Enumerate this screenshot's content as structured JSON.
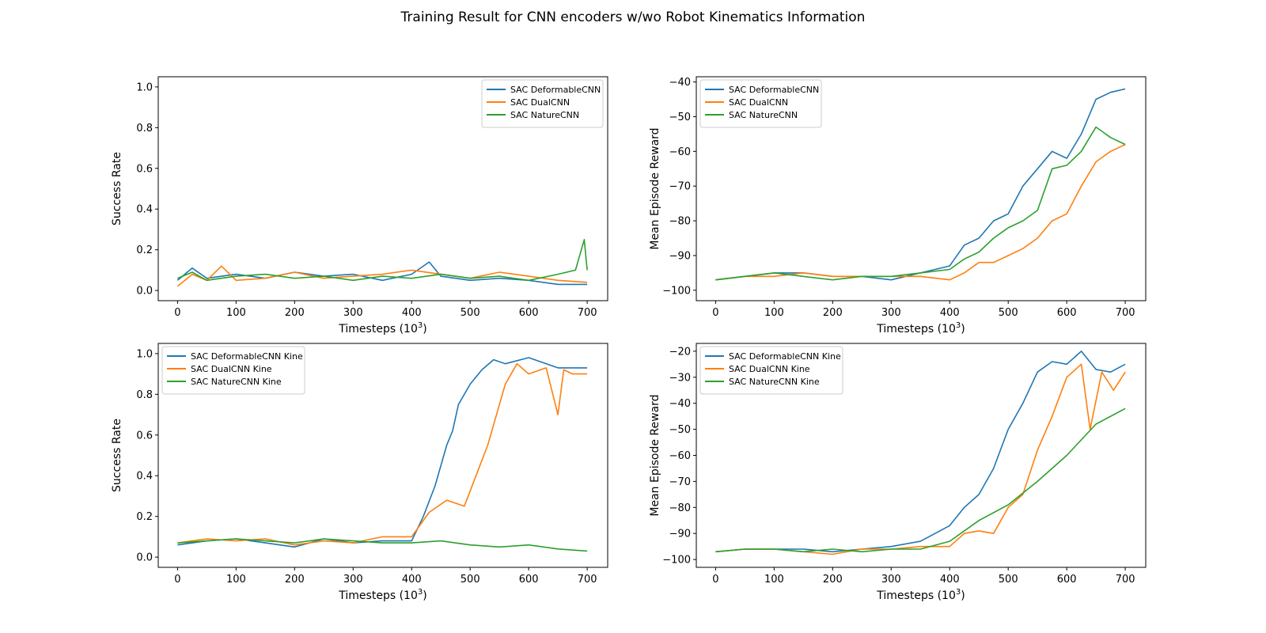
{
  "figure": {
    "title": "Training Result for CNN encoders w/wo Robot Kinematics Information"
  },
  "colors": {
    "blue": "#1f77b4",
    "orange": "#ff7f0e",
    "green": "#2ca02c"
  },
  "chart_data": [
    {
      "type": "line",
      "xlabel": "Timesteps",
      "xlabel_unit_base": "10",
      "xlabel_unit_exp": "3",
      "ylabel": "Success Rate",
      "xlim": [
        -33,
        735
      ],
      "ylim": [
        -0.05,
        1.05
      ],
      "xticks": [
        0,
        100,
        200,
        300,
        400,
        500,
        600,
        700
      ],
      "yticks": [
        0.0,
        0.2,
        0.4,
        0.6,
        0.8,
        1.0
      ],
      "ytick_labels": [
        "0.0",
        "0.2",
        "0.4",
        "0.6",
        "0.8",
        "1.0"
      ],
      "legend": "top-right",
      "series": [
        {
          "name": "SAC DeformableCNN",
          "color": "#1f77b4",
          "x": [
            0,
            25,
            50,
            100,
            150,
            200,
            250,
            300,
            350,
            400,
            430,
            450,
            500,
            550,
            600,
            650,
            675,
            700
          ],
          "y": [
            0.05,
            0.11,
            0.06,
            0.08,
            0.06,
            0.09,
            0.07,
            0.08,
            0.05,
            0.08,
            0.14,
            0.07,
            0.05,
            0.06,
            0.05,
            0.03,
            0.03,
            0.03
          ]
        },
        {
          "name": "SAC DualCNN",
          "color": "#ff7f0e",
          "x": [
            0,
            25,
            50,
            75,
            100,
            150,
            200,
            250,
            300,
            350,
            400,
            450,
            500,
            550,
            600,
            650,
            700
          ],
          "y": [
            0.02,
            0.08,
            0.05,
            0.12,
            0.05,
            0.06,
            0.09,
            0.06,
            0.07,
            0.08,
            0.1,
            0.08,
            0.06,
            0.09,
            0.07,
            0.05,
            0.04
          ]
        },
        {
          "name": "SAC NatureCNN",
          "color": "#2ca02c",
          "x": [
            0,
            25,
            50,
            100,
            150,
            200,
            250,
            300,
            350,
            400,
            450,
            500,
            550,
            600,
            650,
            680,
            695,
            700
          ],
          "y": [
            0.06,
            0.09,
            0.05,
            0.07,
            0.08,
            0.06,
            0.07,
            0.05,
            0.07,
            0.06,
            0.08,
            0.06,
            0.07,
            0.05,
            0.08,
            0.1,
            0.25,
            0.1
          ]
        }
      ]
    },
    {
      "type": "line",
      "xlabel": "Timesteps",
      "xlabel_unit_base": "10",
      "xlabel_unit_exp": "3",
      "ylabel": "Mean Episode Reward",
      "xlim": [
        -33,
        735
      ],
      "ylim": [
        -103,
        -38.5
      ],
      "xticks": [
        0,
        100,
        200,
        300,
        400,
        500,
        600,
        700
      ],
      "yticks": [
        -100,
        -90,
        -80,
        -70,
        -60,
        -50,
        -40
      ],
      "ytick_labels": [
        "−100",
        "−90",
        "−80",
        "−70",
        "−60",
        "−50",
        "−40"
      ],
      "legend": "top-left",
      "series": [
        {
          "name": "SAC DeformableCNN",
          "color": "#1f77b4",
          "x": [
            0,
            50,
            100,
            150,
            200,
            250,
            300,
            350,
            400,
            425,
            450,
            475,
            500,
            525,
            550,
            575,
            600,
            625,
            650,
            675,
            700
          ],
          "y": [
            -97,
            -96,
            -95,
            -95,
            -96,
            -96,
            -97,
            -95,
            -93,
            -87,
            -85,
            -80,
            -78,
            -70,
            -65,
            -60,
            -62,
            -55,
            -45,
            -43,
            -42
          ]
        },
        {
          "name": "SAC DualCNN",
          "color": "#ff7f0e",
          "x": [
            0,
            50,
            100,
            150,
            200,
            250,
            300,
            350,
            400,
            425,
            450,
            475,
            500,
            525,
            550,
            575,
            600,
            625,
            650,
            675,
            700
          ],
          "y": [
            -97,
            -96,
            -96,
            -95,
            -96,
            -96,
            -96,
            -96,
            -97,
            -95,
            -92,
            -92,
            -90,
            -88,
            -85,
            -80,
            -78,
            -70,
            -63,
            -60,
            -58
          ]
        },
        {
          "name": "SAC NatureCNN",
          "color": "#2ca02c",
          "x": [
            0,
            50,
            100,
            150,
            200,
            250,
            300,
            350,
            400,
            425,
            450,
            475,
            500,
            525,
            550,
            575,
            600,
            625,
            650,
            675,
            700
          ],
          "y": [
            -97,
            -96,
            -95,
            -96,
            -97,
            -96,
            -96,
            -95,
            -94,
            -91,
            -89,
            -85,
            -82,
            -80,
            -77,
            -65,
            -64,
            -60,
            -53,
            -56,
            -58
          ]
        }
      ]
    },
    {
      "type": "line",
      "xlabel": "Timesteps",
      "xlabel_unit_base": "10",
      "xlabel_unit_exp": "3",
      "ylabel": "Success Rate",
      "xlim": [
        -33,
        735
      ],
      "ylim": [
        -0.05,
        1.05
      ],
      "xticks": [
        0,
        100,
        200,
        300,
        400,
        500,
        600,
        700
      ],
      "yticks": [
        0.0,
        0.2,
        0.4,
        0.6,
        0.8,
        1.0
      ],
      "ytick_labels": [
        "0.0",
        "0.2",
        "0.4",
        "0.6",
        "0.8",
        "1.0"
      ],
      "legend": "top-left",
      "series": [
        {
          "name": "SAC DeformableCNN Kine",
          "color": "#1f77b4",
          "x": [
            0,
            50,
            100,
            150,
            200,
            250,
            300,
            350,
            400,
            420,
            440,
            460,
            470,
            480,
            500,
            520,
            540,
            560,
            600,
            650,
            700
          ],
          "y": [
            0.06,
            0.08,
            0.09,
            0.07,
            0.05,
            0.09,
            0.07,
            0.08,
            0.08,
            0.2,
            0.35,
            0.55,
            0.62,
            0.75,
            0.85,
            0.92,
            0.97,
            0.95,
            0.98,
            0.93,
            0.93
          ]
        },
        {
          "name": "SAC DualCNN Kine",
          "color": "#ff7f0e",
          "x": [
            0,
            50,
            100,
            150,
            200,
            250,
            300,
            350,
            400,
            430,
            460,
            490,
            510,
            530,
            560,
            580,
            600,
            630,
            650,
            660,
            675,
            700
          ],
          "y": [
            0.07,
            0.09,
            0.08,
            0.09,
            0.06,
            0.08,
            0.07,
            0.1,
            0.1,
            0.22,
            0.28,
            0.25,
            0.4,
            0.55,
            0.85,
            0.95,
            0.9,
            0.93,
            0.7,
            0.92,
            0.9,
            0.9
          ]
        },
        {
          "name": "SAC NatureCNN Kine",
          "color": "#2ca02c",
          "x": [
            0,
            50,
            100,
            150,
            200,
            250,
            300,
            350,
            400,
            450,
            500,
            550,
            600,
            650,
            700
          ],
          "y": [
            0.07,
            0.08,
            0.09,
            0.08,
            0.07,
            0.09,
            0.08,
            0.07,
            0.07,
            0.08,
            0.06,
            0.05,
            0.06,
            0.04,
            0.03
          ]
        }
      ]
    },
    {
      "type": "line",
      "xlabel": "Timesteps",
      "xlabel_unit_base": "10",
      "xlabel_unit_exp": "3",
      "ylabel": "Mean Episode Reward",
      "xlim": [
        -33,
        735
      ],
      "ylim": [
        -103,
        -17
      ],
      "xticks": [
        0,
        100,
        200,
        300,
        400,
        500,
        600,
        700
      ],
      "yticks": [
        -100,
        -90,
        -80,
        -70,
        -60,
        -50,
        -40,
        -30,
        -20
      ],
      "ytick_labels": [
        "−100",
        "−90",
        "−80",
        "−70",
        "−60",
        "−50",
        "−40",
        "−30",
        "−20"
      ],
      "legend": "top-left",
      "series": [
        {
          "name": "SAC DeformableCNN Kine",
          "color": "#1f77b4",
          "x": [
            0,
            50,
            100,
            150,
            200,
            250,
            300,
            350,
            400,
            425,
            450,
            475,
            500,
            525,
            550,
            575,
            600,
            625,
            650,
            675,
            700
          ],
          "y": [
            -97,
            -96,
            -96,
            -96,
            -97,
            -96,
            -95,
            -93,
            -87,
            -80,
            -75,
            -65,
            -50,
            -40,
            -28,
            -24,
            -25,
            -20,
            -27,
            -28,
            -25
          ]
        },
        {
          "name": "SAC DualCNN Kine",
          "color": "#ff7f0e",
          "x": [
            0,
            50,
            100,
            150,
            200,
            250,
            300,
            350,
            400,
            425,
            450,
            475,
            500,
            525,
            550,
            575,
            600,
            625,
            640,
            660,
            680,
            700
          ],
          "y": [
            -97,
            -96,
            -96,
            -97,
            -98,
            -96,
            -96,
            -95,
            -95,
            -90,
            -89,
            -90,
            -80,
            -75,
            -58,
            -45,
            -30,
            -25,
            -50,
            -28,
            -35,
            -28
          ]
        },
        {
          "name": "SAC NatureCNN Kine",
          "color": "#2ca02c",
          "x": [
            0,
            50,
            100,
            150,
            200,
            250,
            300,
            350,
            400,
            450,
            500,
            550,
            600,
            650,
            700
          ],
          "y": [
            -97,
            -96,
            -96,
            -97,
            -96,
            -97,
            -96,
            -96,
            -93,
            -85,
            -79,
            -70,
            -60,
            -48,
            -42
          ]
        }
      ]
    }
  ]
}
